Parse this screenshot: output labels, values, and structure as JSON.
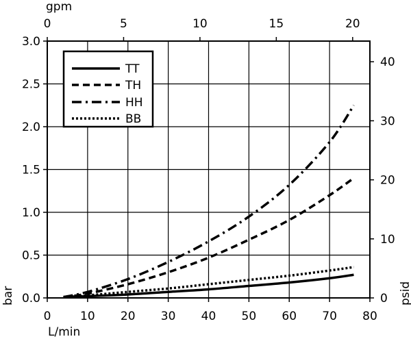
{
  "chart_data": {
    "type": "line",
    "title": "",
    "x_bottom": {
      "label": "L/min",
      "ticks": [
        0,
        10,
        20,
        30,
        40,
        50,
        60,
        70,
        80
      ],
      "range": [
        0,
        80
      ]
    },
    "x_top": {
      "label": "gpm",
      "ticks": [
        0,
        5,
        10,
        15,
        20
      ],
      "range": [
        0,
        21.13
      ]
    },
    "y_left": {
      "label": "bar",
      "ticks": [
        "0.0",
        "0.5",
        "1.0",
        "1.5",
        "2.0",
        "2.5",
        "3.0"
      ],
      "range": [
        0,
        3.0
      ]
    },
    "y_right": {
      "label": "psid",
      "ticks": [
        0,
        10,
        20,
        30,
        40
      ],
      "range": [
        0,
        43.5
      ]
    },
    "grid": true,
    "legend_position": "top-left",
    "series": [
      {
        "name": "TT",
        "style": "solid",
        "x": [
          4,
          10,
          20,
          30,
          40,
          50,
          60,
          70,
          76
        ],
        "y": [
          0.01,
          0.02,
          0.04,
          0.07,
          0.1,
          0.14,
          0.18,
          0.23,
          0.27
        ]
      },
      {
        "name": "TH",
        "style": "dashed",
        "x": [
          4,
          10,
          20,
          30,
          40,
          50,
          60,
          70,
          76
        ],
        "y": [
          0.01,
          0.05,
          0.16,
          0.3,
          0.47,
          0.68,
          0.91,
          1.2,
          1.4
        ]
      },
      {
        "name": "HH",
        "style": "dash-dot",
        "x": [
          4,
          10,
          20,
          30,
          40,
          50,
          60,
          70,
          76
        ],
        "y": [
          0.01,
          0.07,
          0.22,
          0.42,
          0.66,
          0.95,
          1.32,
          1.82,
          2.25
        ]
      },
      {
        "name": "BB",
        "style": "dotted",
        "x": [
          4,
          10,
          20,
          30,
          40,
          50,
          60,
          70,
          76
        ],
        "y": [
          0.01,
          0.03,
          0.07,
          0.11,
          0.16,
          0.21,
          0.26,
          0.32,
          0.36
        ]
      }
    ]
  }
}
